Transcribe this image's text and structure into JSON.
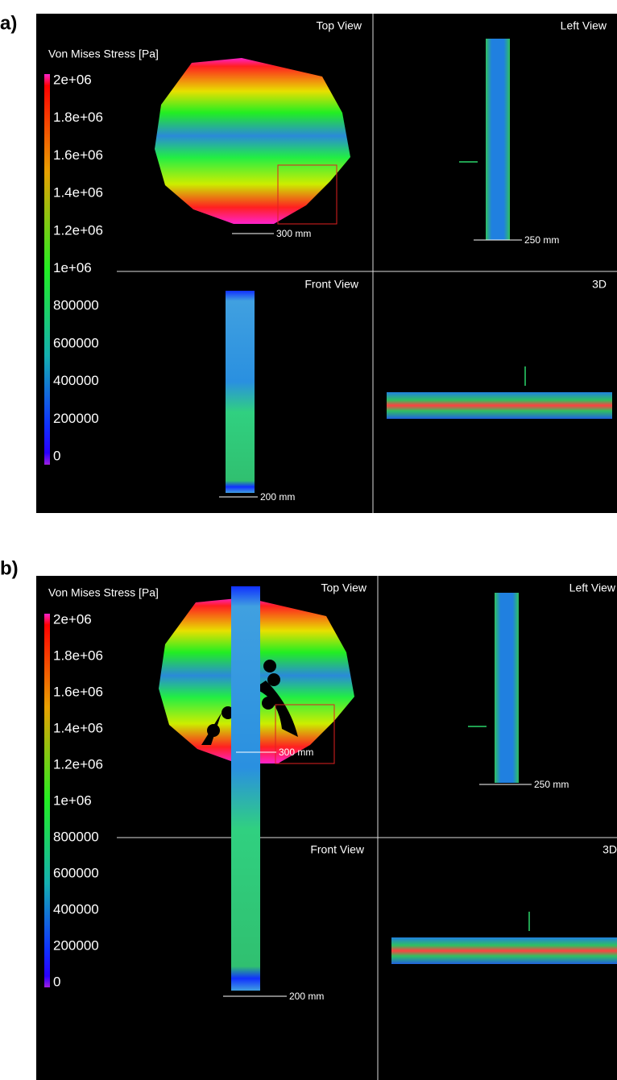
{
  "panels": [
    {
      "label": "a)",
      "colorbar": {
        "title": "Von Mises Stress [Pa]",
        "ticks": [
          "2e+06",
          "1.8e+06",
          "1.6e+06",
          "1.4e+06",
          "1.2e+06",
          "1e+06",
          "800000",
          "600000",
          "400000",
          "200000",
          "0"
        ]
      },
      "views": {
        "top": {
          "title": "Top View",
          "scale": "300 mm"
        },
        "left": {
          "title": "Left View",
          "scale": "250 mm"
        },
        "front": {
          "title": "Front View",
          "scale": "200 mm"
        },
        "iso": {
          "title": "3D"
        }
      }
    },
    {
      "label": "b)",
      "colorbar": {
        "title": "Von Mises Stress [Pa]",
        "ticks": [
          "2e+06",
          "1.8e+06",
          "1.6e+06",
          "1.4e+06",
          "1.2e+06",
          "1e+06",
          "800000",
          "600000",
          "400000",
          "200000",
          "0"
        ]
      },
      "views": {
        "top": {
          "title": "Top View",
          "scale": "300 mm"
        },
        "left": {
          "title": "Left View",
          "scale": "250 mm"
        },
        "front": {
          "title": "Front View",
          "scale": "200 mm"
        },
        "iso": {
          "title": "3D"
        }
      }
    }
  ]
}
